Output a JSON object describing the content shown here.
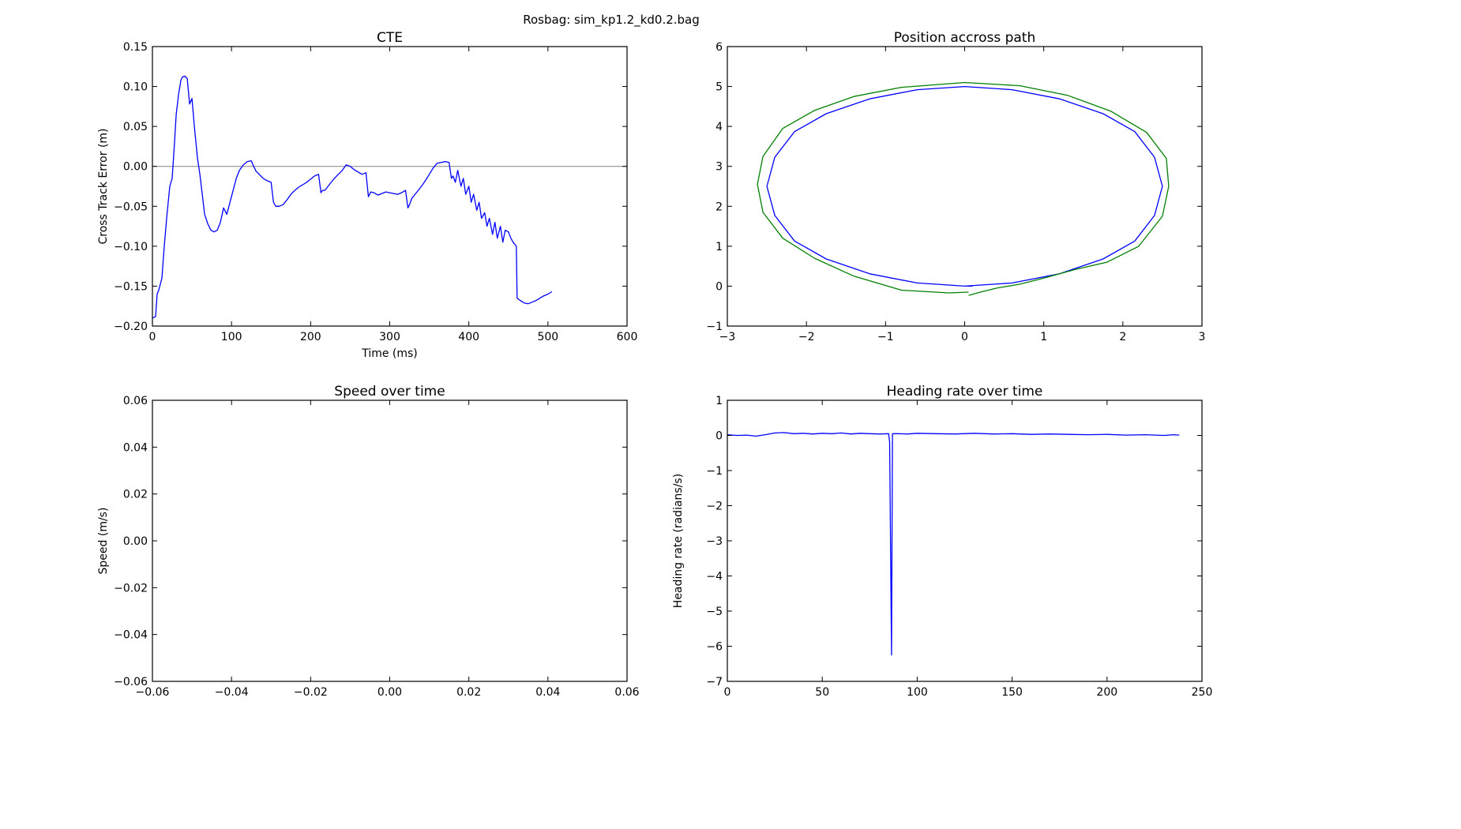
{
  "figure_title": "Rosbag: sim_kp1.2_kd0.2.bag",
  "chart_data": [
    {
      "type": "line",
      "title": "CTE",
      "xlabel": "Time (ms)",
      "ylabel": "Cross Track Error (m)",
      "xlim": [
        0,
        600
      ],
      "ylim": [
        -0.2,
        0.15
      ],
      "xticks": [
        0,
        100,
        200,
        300,
        400,
        500,
        600
      ],
      "yticks": [
        -0.2,
        -0.15,
        -0.1,
        -0.05,
        0.0,
        0.05,
        0.1,
        0.15
      ],
      "yformat": 2,
      "xformat": 0,
      "reference_lines": [
        {
          "axis": "y",
          "value": 0,
          "color": "#808080"
        }
      ],
      "series": [
        {
          "color": "#0000ff",
          "x": [
            0,
            4,
            6,
            8,
            12,
            15,
            18,
            22,
            25,
            28,
            30,
            33,
            36,
            38,
            41,
            44,
            47,
            50,
            53,
            55,
            57,
            60,
            63,
            66,
            70,
            74,
            78,
            82,
            86,
            90,
            94,
            98,
            102,
            106,
            110,
            115,
            120,
            125,
            128,
            131,
            135,
            140,
            145,
            150,
            153,
            156,
            160,
            165,
            170,
            175,
            180,
            185,
            190,
            195,
            200,
            205,
            210,
            213,
            215,
            218,
            222,
            226,
            230,
            235,
            240,
            245,
            250,
            255,
            260,
            265,
            270,
            273,
            276,
            280,
            285,
            290,
            295,
            300,
            305,
            310,
            315,
            320,
            323,
            325,
            328,
            332,
            336,
            340,
            345,
            350,
            355,
            360,
            365,
            370,
            375,
            378,
            380,
            383,
            386,
            390,
            393,
            396,
            400,
            403,
            406,
            410,
            413,
            416,
            420,
            423,
            426,
            430,
            433,
            436,
            440,
            443,
            446,
            450,
            453,
            456,
            460,
            461,
            465,
            470,
            475,
            480,
            485,
            490,
            495,
            500,
            505
          ],
          "y": [
            -0.19,
            -0.188,
            -0.16,
            -0.155,
            -0.14,
            -0.1,
            -0.065,
            -0.025,
            -0.015,
            0.03,
            0.065,
            0.09,
            0.108,
            0.112,
            0.113,
            0.11,
            0.078,
            0.085,
            0.05,
            0.03,
            0.01,
            -0.01,
            -0.035,
            -0.06,
            -0.072,
            -0.08,
            -0.082,
            -0.08,
            -0.07,
            -0.052,
            -0.06,
            -0.045,
            -0.03,
            -0.015,
            -0.005,
            0.002,
            0.006,
            0.007,
            0.0,
            -0.006,
            -0.01,
            -0.015,
            -0.018,
            -0.02,
            -0.045,
            -0.05,
            -0.05,
            -0.048,
            -0.042,
            -0.035,
            -0.03,
            -0.026,
            -0.023,
            -0.02,
            -0.016,
            -0.012,
            -0.01,
            -0.033,
            -0.03,
            -0.03,
            -0.025,
            -0.02,
            -0.015,
            -0.01,
            -0.005,
            0.002,
            0.0,
            -0.004,
            -0.007,
            -0.01,
            -0.008,
            -0.038,
            -0.032,
            -0.033,
            -0.036,
            -0.034,
            -0.032,
            -0.033,
            -0.034,
            -0.035,
            -0.033,
            -0.03,
            -0.052,
            -0.048,
            -0.04,
            -0.035,
            -0.03,
            -0.025,
            -0.018,
            -0.01,
            -0.002,
            0.004,
            0.005,
            0.006,
            0.005,
            -0.015,
            -0.012,
            -0.02,
            -0.005,
            -0.025,
            -0.015,
            -0.035,
            -0.025,
            -0.045,
            -0.035,
            -0.055,
            -0.045,
            -0.065,
            -0.058,
            -0.075,
            -0.065,
            -0.085,
            -0.07,
            -0.09,
            -0.075,
            -0.095,
            -0.08,
            -0.082,
            -0.09,
            -0.095,
            -0.1,
            -0.165,
            -0.168,
            -0.171,
            -0.172,
            -0.17,
            -0.168,
            -0.165,
            -0.162,
            -0.16,
            -0.157
          ]
        }
      ]
    },
    {
      "type": "line",
      "title": "Position accross path",
      "xlabel": "",
      "ylabel": "",
      "xlim": [
        -3,
        3
      ],
      "ylim": [
        -1,
        6
      ],
      "xticks": [
        -3,
        -2,
        -1,
        0,
        1,
        2,
        3
      ],
      "yticks": [
        -1,
        0,
        1,
        2,
        3,
        4,
        5,
        6
      ],
      "yformat": 0,
      "xformat": 0,
      "series": [
        {
          "color": "#0000ff",
          "x": [
            0.1,
            0.0,
            -0.6,
            -1.2,
            -1.75,
            -2.15,
            -2.4,
            -2.5,
            -2.4,
            -2.15,
            -1.75,
            -1.2,
            -0.6,
            0.0,
            0.6,
            1.2,
            1.75,
            2.15,
            2.4,
            2.5,
            2.4,
            2.15,
            1.75,
            1.2,
            0.6,
            0.0
          ],
          "y": [
            0.0,
            0.0,
            0.08,
            0.31,
            0.68,
            1.13,
            1.77,
            2.5,
            3.23,
            3.87,
            4.32,
            4.69,
            4.92,
            5.0,
            4.92,
            4.69,
            4.32,
            3.87,
            3.23,
            2.5,
            1.77,
            1.13,
            0.68,
            0.31,
            0.08,
            0.0
          ]
        },
        {
          "color": "#008000",
          "x": [
            0.05,
            -0.2,
            -0.8,
            -1.4,
            -1.9,
            -2.3,
            -2.55,
            -2.62,
            -2.55,
            -2.3,
            -1.9,
            -1.4,
            -0.8,
            0.0,
            0.7,
            1.3,
            1.85,
            2.3,
            2.55,
            2.58,
            2.5,
            2.2,
            1.8,
            1.4,
            1.0,
            0.7,
            0.4,
            0.2,
            0.05
          ],
          "y": [
            -0.15,
            -0.17,
            -0.1,
            0.25,
            0.7,
            1.2,
            1.85,
            2.55,
            3.25,
            3.95,
            4.4,
            4.75,
            4.98,
            5.1,
            5.02,
            4.78,
            4.38,
            3.85,
            3.2,
            2.5,
            1.75,
            1.0,
            0.6,
            0.42,
            0.2,
            0.05,
            -0.05,
            -0.15,
            -0.23
          ]
        }
      ]
    },
    {
      "type": "line",
      "title": "Speed over time",
      "xlabel": "",
      "ylabel": "Speed (m/s)",
      "xlim": [
        -0.06,
        0.06
      ],
      "ylim": [
        -0.06,
        0.06
      ],
      "xticks": [
        -0.06,
        -0.04,
        -0.02,
        0.0,
        0.02,
        0.04,
        0.06
      ],
      "yticks": [
        -0.06,
        -0.04,
        -0.02,
        0.0,
        0.02,
        0.04,
        0.06
      ],
      "yformat": 2,
      "xformat": 2,
      "series": []
    },
    {
      "type": "line",
      "title": "Heading rate over time",
      "xlabel": "",
      "ylabel": "Heading rate (radians/s)",
      "xlim": [
        0,
        250
      ],
      "ylim": [
        -7,
        1
      ],
      "xticks": [
        0,
        50,
        100,
        150,
        200,
        250
      ],
      "yticks": [
        -7,
        -6,
        -5,
        -4,
        -3,
        -2,
        -1,
        0,
        1
      ],
      "yformat": 0,
      "xformat": 0,
      "series": [
        {
          "color": "#0000ff",
          "x": [
            0,
            5,
            10,
            15,
            20,
            25,
            30,
            35,
            40,
            45,
            50,
            55,
            60,
            65,
            70,
            75,
            80,
            85,
            85.5,
            86.5,
            87,
            90,
            95,
            100,
            110,
            120,
            130,
            140,
            150,
            160,
            170,
            180,
            190,
            200,
            210,
            220,
            230,
            235,
            238
          ],
          "y": [
            0.02,
            0.0,
            0.01,
            -0.02,
            0.02,
            0.07,
            0.08,
            0.05,
            0.06,
            0.04,
            0.06,
            0.05,
            0.07,
            0.04,
            0.06,
            0.05,
            0.04,
            0.05,
            -0.2,
            -6.25,
            0.05,
            0.05,
            0.04,
            0.06,
            0.05,
            0.04,
            0.06,
            0.04,
            0.05,
            0.03,
            0.04,
            0.03,
            0.02,
            0.03,
            0.01,
            0.02,
            0.0,
            0.02,
            0.01
          ]
        }
      ]
    }
  ]
}
